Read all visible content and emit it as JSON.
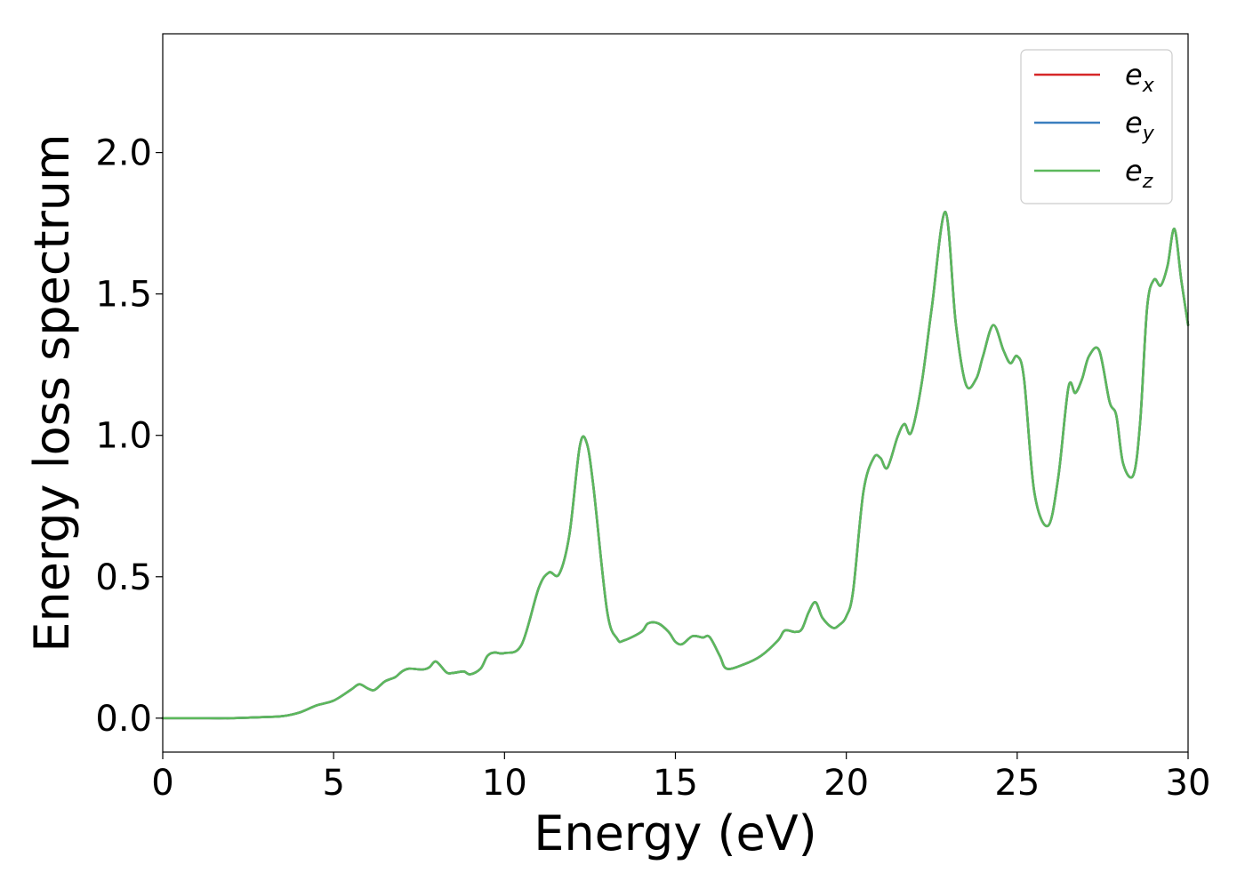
{
  "chart_data": {
    "type": "line",
    "xlabel": "Energy (eV)",
    "ylabel": "Energy loss spectrum",
    "xlim": [
      0,
      30
    ],
    "ylim": [
      -0.12,
      2.42
    ],
    "xticks": [
      0,
      5,
      10,
      15,
      20,
      25,
      30
    ],
    "xtick_labels": [
      "0",
      "5",
      "10",
      "15",
      "20",
      "25",
      "30"
    ],
    "yticks": [
      0.0,
      0.5,
      1.0,
      1.5,
      2.0
    ],
    "ytick_labels": [
      "0.0",
      "0.5",
      "1.0",
      "1.5",
      "2.0"
    ],
    "grid": false,
    "legend_position": "top-right",
    "series": [
      {
        "name": "e",
        "subscript": "x",
        "color": "#d62728"
      },
      {
        "name": "e",
        "subscript": "y",
        "color": "#3a7fbf"
      },
      {
        "name": "e",
        "subscript": "z",
        "color": "#5cb85c"
      }
    ],
    "x": [
      0,
      1,
      2,
      3,
      3.5,
      4.0,
      4.5,
      5.0,
      5.5,
      5.75,
      6.0,
      6.2,
      6.5,
      6.8,
      7.0,
      7.2,
      7.6,
      7.8,
      8.0,
      8.3,
      8.5,
      8.8,
      9.0,
      9.3,
      9.5,
      9.7,
      10.0,
      10.5,
      11.0,
      11.3,
      11.6,
      11.9,
      12.2,
      12.4,
      12.6,
      13.0,
      13.3,
      13.5,
      14.0,
      14.2,
      14.5,
      14.8,
      15.0,
      15.2,
      15.5,
      15.8,
      16.0,
      16.3,
      16.5,
      17.0,
      17.5,
      18.0,
      18.2,
      18.5,
      18.7,
      18.9,
      19.1,
      19.3,
      19.6,
      19.8,
      20.0,
      20.2,
      20.5,
      20.8,
      21.0,
      21.2,
      21.5,
      21.7,
      21.9,
      22.2,
      22.5,
      22.9,
      23.2,
      23.5,
      23.8,
      24.0,
      24.3,
      24.6,
      24.8,
      25.0,
      25.2,
      25.5,
      25.9,
      26.2,
      26.5,
      26.7,
      26.9,
      27.1,
      27.4,
      27.7,
      27.9,
      28.1,
      28.4,
      28.6,
      28.8,
      29.0,
      29.2,
      29.4,
      29.6,
      29.8,
      30.0
    ],
    "values": [
      0.0,
      0.0,
      0.0,
      0.004,
      0.007,
      0.02,
      0.045,
      0.062,
      0.1,
      0.12,
      0.105,
      0.1,
      0.13,
      0.145,
      0.165,
      0.175,
      0.172,
      0.18,
      0.2,
      0.162,
      0.16,
      0.165,
      0.155,
      0.175,
      0.22,
      0.232,
      0.23,
      0.26,
      0.46,
      0.515,
      0.51,
      0.65,
      0.96,
      0.975,
      0.82,
      0.38,
      0.28,
      0.275,
      0.305,
      0.335,
      0.335,
      0.305,
      0.27,
      0.262,
      0.29,
      0.285,
      0.287,
      0.22,
      0.175,
      0.19,
      0.22,
      0.275,
      0.31,
      0.305,
      0.315,
      0.375,
      0.41,
      0.355,
      0.32,
      0.33,
      0.36,
      0.45,
      0.8,
      0.92,
      0.92,
      0.885,
      0.995,
      1.04,
      1.01,
      1.18,
      1.45,
      1.79,
      1.4,
      1.18,
      1.2,
      1.28,
      1.39,
      1.3,
      1.255,
      1.28,
      1.2,
      0.8,
      0.68,
      0.85,
      1.17,
      1.15,
      1.2,
      1.28,
      1.3,
      1.12,
      1.07,
      0.9,
      0.86,
      1.05,
      1.45,
      1.55,
      1.53,
      1.6,
      1.73,
      1.55,
      1.39
    ]
  }
}
